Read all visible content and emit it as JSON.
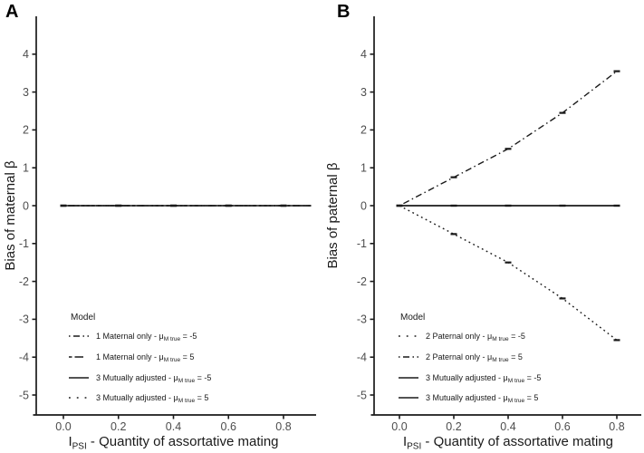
{
  "chart_data": [
    {
      "type": "line",
      "panel_label": "A",
      "ylabel": "Bias of maternal β",
      "xlabel": {
        "pre": "I",
        "sub": "PSI",
        "post": " - Quantity of assortative mating"
      },
      "xlim": [
        -0.1,
        0.91
      ],
      "ylim": [
        -5.5,
        5.0
      ],
      "x_ticks": [
        "0.0",
        "0.2",
        "0.4",
        "0.6",
        "0.8"
      ],
      "x_tick_values": [
        0,
        0.2,
        0.4,
        0.6,
        0.8
      ],
      "y_ticks": [
        4,
        3,
        2,
        1,
        0,
        -1,
        -2,
        -3,
        -4,
        -5
      ],
      "grid": false,
      "legend_title": "Model",
      "legend_position": "inside-bottom-left",
      "series": [
        {
          "label": {
            "pre": "1 Maternal only - μ",
            "sub": "M true",
            "post": " = -5"
          },
          "linetype": "dotdash",
          "x": [
            0,
            0.2,
            0.4,
            0.6,
            0.8,
            0.9
          ],
          "y": [
            0,
            0,
            0,
            0,
            0,
            0
          ]
        },
        {
          "label": {
            "pre": "1 Maternal only - μ",
            "sub": "M true",
            "post": " = 5"
          },
          "linetype": "twodash",
          "x": [
            0,
            0.2,
            0.4,
            0.6,
            0.8,
            0.9
          ],
          "y": [
            0,
            0,
            0,
            0,
            0,
            0
          ]
        },
        {
          "label": {
            "pre": "3 Mutually adjusted - μ",
            "sub": "M true",
            "post": " = -5"
          },
          "linetype": "solid",
          "x": [
            0,
            0.2,
            0.4,
            0.6,
            0.8,
            0.9
          ],
          "y": [
            0,
            0,
            0,
            0,
            0,
            0
          ]
        },
        {
          "label": {
            "pre": "3 Mutually adjusted - μ",
            "sub": "M true",
            "post": " = 5"
          },
          "linetype": "dotted",
          "x": [
            0,
            0.2,
            0.4,
            0.6,
            0.8,
            0.9
          ],
          "y": [
            0,
            0,
            0,
            0,
            0,
            0
          ]
        }
      ]
    },
    {
      "type": "line",
      "panel_label": "B",
      "ylabel": "Bias of paternal β",
      "xlabel": {
        "pre": "I",
        "sub": "PSI",
        "post": " - Quantity of assortative mating"
      },
      "xlim": [
        -0.1,
        0.89
      ],
      "ylim": [
        -5.5,
        5.0
      ],
      "x_ticks": [
        "0.0",
        "0.2",
        "0.4",
        "0.6",
        "0.8"
      ],
      "x_tick_values": [
        0,
        0.2,
        0.4,
        0.6,
        0.8
      ],
      "y_ticks": [
        4,
        3,
        2,
        1,
        0,
        -1,
        -2,
        -3,
        -4,
        -5
      ],
      "grid": false,
      "legend_title": "Model",
      "legend_position": "inside-bottom-left",
      "series": [
        {
          "label": {
            "pre": "2 Paternal only - μ",
            "sub": "M true",
            "post": " = -5"
          },
          "linetype": "dotted",
          "x": [
            0,
            0.2,
            0.4,
            0.6,
            0.8
          ],
          "y": [
            0,
            -0.75,
            -1.5,
            -2.45,
            -3.55
          ]
        },
        {
          "label": {
            "pre": "2 Paternal only - μ",
            "sub": "M true",
            "post": " = 5"
          },
          "linetype": "dotdash",
          "x": [
            0,
            0.2,
            0.4,
            0.6,
            0.8
          ],
          "y": [
            0,
            0.75,
            1.5,
            2.45,
            3.55
          ]
        },
        {
          "label": {
            "pre": "3 Mutually adjusted - μ",
            "sub": "M true",
            "post": " = -5"
          },
          "linetype": "solid",
          "x": [
            0,
            0.2,
            0.4,
            0.6,
            0.8
          ],
          "y": [
            0,
            0,
            0,
            0,
            0
          ]
        },
        {
          "label": {
            "pre": "3 Mutually adjusted - μ",
            "sub": "M true",
            "post": " = 5"
          },
          "linetype": "solid",
          "x": [
            0,
            0.2,
            0.4,
            0.6,
            0.8
          ],
          "y": [
            0,
            0,
            0,
            0,
            0
          ]
        }
      ]
    }
  ],
  "colors": {
    "line": "#1a1a1a",
    "axis": "#1a1a1a",
    "tick_label": "#4d4d4d",
    "title": "#1a1a1a",
    "background": "#ffffff"
  }
}
